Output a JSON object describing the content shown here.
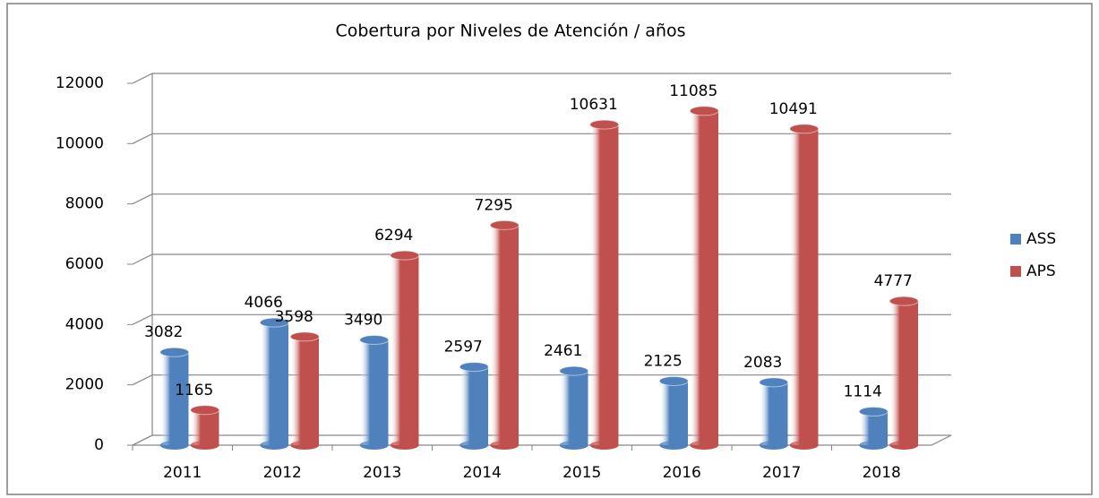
{
  "chart_data": {
    "type": "bar",
    "title": "Cobertura por Niveles de Atención / años",
    "categories": [
      "2011",
      "2012",
      "2013",
      "2014",
      "2015",
      "2016",
      "2017",
      "2018"
    ],
    "series": [
      {
        "name": "ASS",
        "color": "#4f81bd",
        "values": [
          3082,
          4066,
          3490,
          2597,
          2461,
          2125,
          2083,
          1114
        ]
      },
      {
        "name": "APS",
        "color": "#c0504d",
        "values": [
          1165,
          3598,
          6294,
          7295,
          10631,
          11085,
          10491,
          4777
        ]
      }
    ],
    "ylim": [
      0,
      12000
    ],
    "yticks": [
      0,
      2000,
      4000,
      6000,
      8000,
      10000,
      12000
    ],
    "grid": true,
    "legend": "right"
  }
}
